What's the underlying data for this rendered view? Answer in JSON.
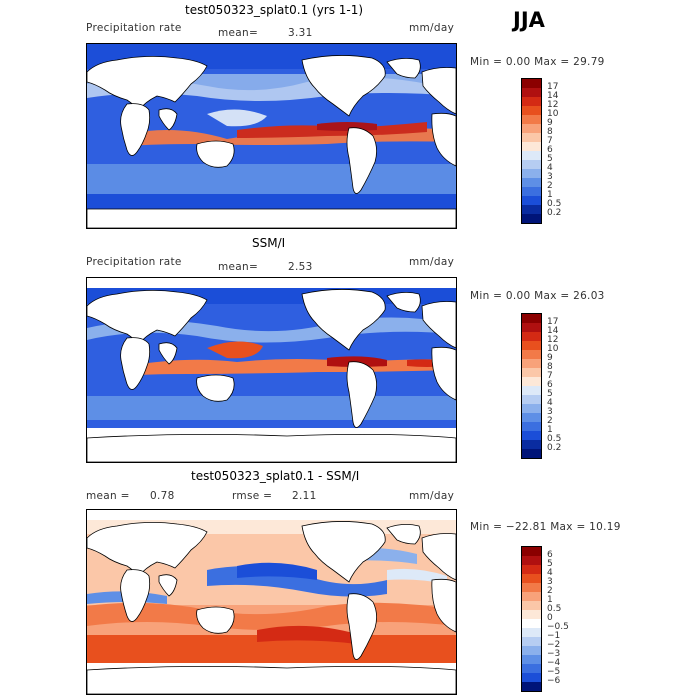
{
  "season": "JJA",
  "units": "mm/day",
  "panels": [
    {
      "title": "test050323_splat0.1 (yrs 1-1)",
      "field_label": "Precipitation rate",
      "mean_label": "mean=",
      "mean_value": "3.31",
      "units": "mm/day",
      "stats": "Min =     0.00 Max =    29.79",
      "colorbar": {
        "labels": [
          "17",
          "14",
          "12",
          "10",
          "9",
          "8",
          "7",
          "6",
          "5",
          "4",
          "3",
          "2",
          "1",
          "0.5",
          "0.2"
        ],
        "colors": [
          "#8b0000",
          "#b01010",
          "#d42a14",
          "#e8501e",
          "#f27a48",
          "#f8a27a",
          "#fbc7a8",
          "#fde8d8",
          "#dde9f8",
          "#b6cdf2",
          "#8bb0ec",
          "#5e8fe6",
          "#3b6fe0",
          "#1b4ed8",
          "#0a2ca0",
          "#001478"
        ]
      }
    },
    {
      "title": "SSM/I",
      "field_label": "Precipitation rate",
      "mean_label": "mean=",
      "mean_value": "2.53",
      "units": "mm/day",
      "stats": "Min =     0.00 Max =    26.03",
      "colorbar": {
        "labels": [
          "17",
          "14",
          "12",
          "10",
          "9",
          "8",
          "7",
          "6",
          "5",
          "4",
          "3",
          "2",
          "1",
          "0.5",
          "0.2"
        ],
        "colors": [
          "#8b0000",
          "#b01010",
          "#d42a14",
          "#e8501e",
          "#f27a48",
          "#f8a27a",
          "#fbc7a8",
          "#fde8d8",
          "#dde9f8",
          "#b6cdf2",
          "#8bb0ec",
          "#5e8fe6",
          "#3b6fe0",
          "#1b4ed8",
          "#0a2ca0",
          "#001478"
        ]
      }
    },
    {
      "title": "test050323_splat0.1 - SSM/I",
      "mean_label": "mean =",
      "mean_value": "0.78",
      "rmse_label": "rmse =",
      "rmse_value": "2.11",
      "units": "mm/day",
      "stats": "Min = −22.81 Max =    10.19",
      "colorbar": {
        "labels": [
          "6",
          "5",
          "4",
          "3",
          "2",
          "1",
          "0.5",
          "0",
          "−0.5",
          "−1",
          "−2",
          "−3",
          "−4",
          "−5",
          "−6"
        ],
        "colors": [
          "#8b0000",
          "#b01010",
          "#d42a14",
          "#e8501e",
          "#f27a48",
          "#f8a27a",
          "#fbc7a8",
          "#fde8d8",
          "#ffffff",
          "#dde9f8",
          "#b6cdf2",
          "#8bb0ec",
          "#5e8fe6",
          "#3b6fe0",
          "#1b4ed8",
          "#001478"
        ]
      }
    }
  ]
}
